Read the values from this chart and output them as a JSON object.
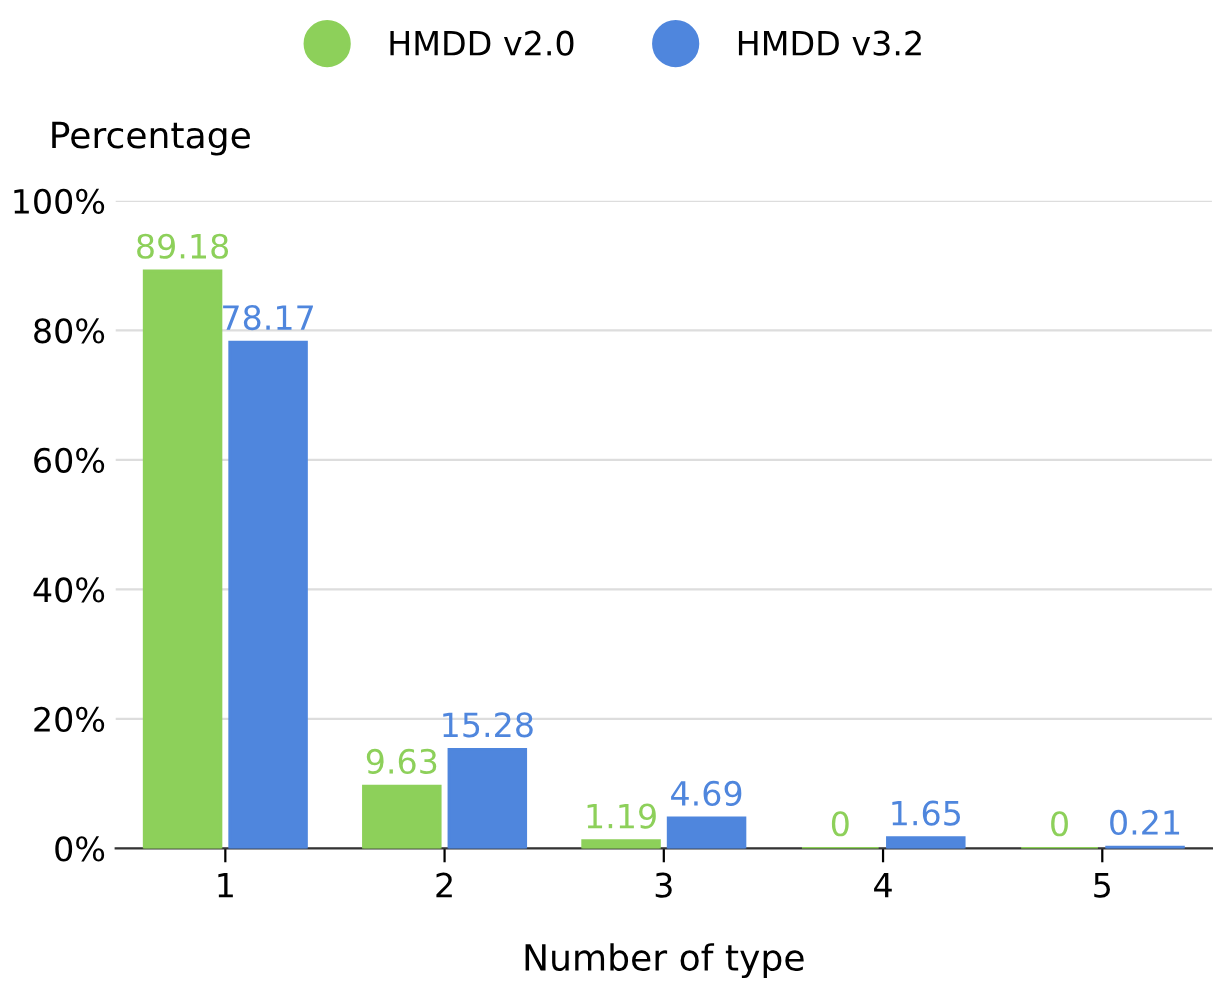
{
  "chart_data": {
    "type": "bar",
    "ylabel": "Percentage",
    "xlabel": "Number of type",
    "categories": [
      "1",
      "2",
      "3",
      "4",
      "5"
    ],
    "series": [
      {
        "name": "HMDD v2.0",
        "color": "#8dd05a",
        "values": [
          89.18,
          9.63,
          1.19,
          0,
          0
        ]
      },
      {
        "name": "HMDD v3.2",
        "color": "#4f86dd",
        "values": [
          78.17,
          15.28,
          4.69,
          1.65,
          0.21
        ]
      }
    ],
    "ylim": [
      0,
      100
    ],
    "yticks": [
      {
        "value": 0,
        "label": "0%"
      },
      {
        "value": 20,
        "label": "20%"
      },
      {
        "value": 40,
        "label": "40%"
      },
      {
        "value": 60,
        "label": "60%"
      },
      {
        "value": 80,
        "label": "80%"
      },
      {
        "value": 100,
        "label": "100%"
      }
    ],
    "grid": "y",
    "legend": "top",
    "data_labels": true
  }
}
